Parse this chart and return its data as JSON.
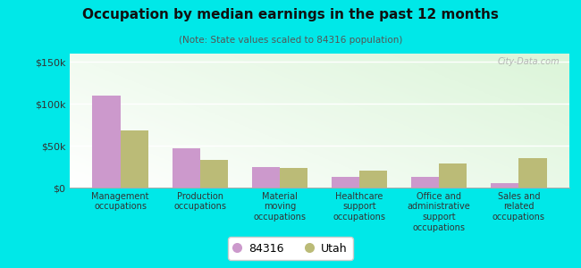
{
  "title": "Occupation by median earnings in the past 12 months",
  "subtitle": "(Note: State values scaled to 84316 population)",
  "categories": [
    "Management\noccupations",
    "Production\noccupations",
    "Material\nmoving\noccupations",
    "Healthcare\nsupport\noccupations",
    "Office and\nadministrative\nsupport\noccupations",
    "Sales and\nrelated\noccupations"
  ],
  "values_84316": [
    110000,
    47000,
    25000,
    13000,
    13000,
    5000
  ],
  "values_utah": [
    68000,
    33000,
    23000,
    20000,
    29000,
    35000
  ],
  "color_84316": "#cc99cc",
  "color_utah": "#bbbb77",
  "ylim": [
    0,
    160000
  ],
  "yticks": [
    0,
    50000,
    100000,
    150000
  ],
  "ytick_labels": [
    "$0",
    "$50k",
    "$100k",
    "$150k"
  ],
  "outer_background": "#00e8e8",
  "bar_width": 0.35,
  "legend_label_84316": "84316",
  "legend_label_utah": "Utah",
  "watermark": "City-Data.com"
}
